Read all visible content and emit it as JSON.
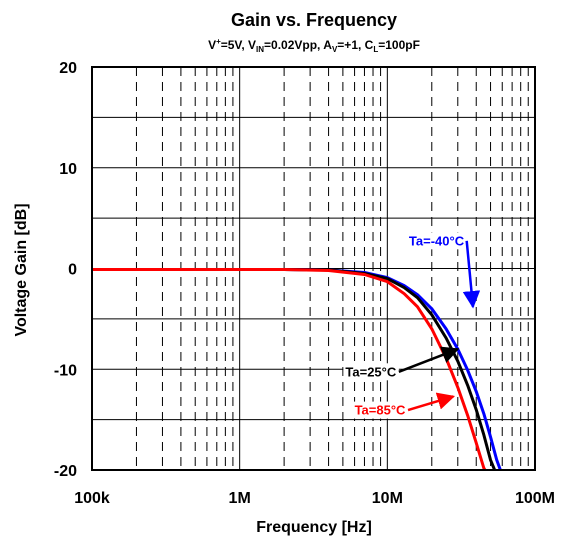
{
  "chart_data": {
    "type": "line",
    "title": "Gain vs. Frequency",
    "subtitle": {
      "v_plus": "V",
      "v_plus_sup": "+",
      "v_plus_value": "=5V, ",
      "v_in": "V",
      "v_in_sub": "IN",
      "v_in_value": "=0.02Vpp, ",
      "a_v": "A",
      "a_v_sub": "V",
      "a_v_value": "=+1, ",
      "c_l": "C",
      "c_l_sub": "L",
      "c_l_value": "=100pF"
    },
    "xlabel": "Frequency [Hz]",
    "ylabel": "Voltage Gain [dB]",
    "x_scale": "log",
    "xlim": [
      100000,
      100000000
    ],
    "ylim": [
      -20,
      20
    ],
    "x_ticks": [
      {
        "value": 100000,
        "label": "100k"
      },
      {
        "value": 1000000,
        "label": "1M"
      },
      {
        "value": 10000000,
        "label": "10M"
      },
      {
        "value": 100000000,
        "label": "100M"
      }
    ],
    "y_ticks": [
      {
        "value": 20,
        "label": "20"
      },
      {
        "value": 10,
        "label": "10"
      },
      {
        "value": 0,
        "label": "0"
      },
      {
        "value": -10,
        "label": "-10"
      },
      {
        "value": -20,
        "label": "-20"
      }
    ],
    "grid": true,
    "series": [
      {
        "name": "Ta=-40°C",
        "color": "#0000ff",
        "x": [
          100000,
          300000,
          1000000,
          2000000,
          4000000,
          7000000,
          10000000,
          13000000,
          16000000,
          20000000,
          25000000,
          30000000,
          35000000,
          40000000,
          45000000,
          50000000,
          55000000,
          60000000
        ],
        "y": [
          -0.1,
          -0.1,
          -0.1,
          -0.1,
          -0.15,
          -0.4,
          -0.9,
          -1.7,
          -2.6,
          -4.0,
          -6.0,
          -8.0,
          -10.1,
          -12.2,
          -14.4,
          -16.7,
          -19.0,
          -20.5
        ]
      },
      {
        "name": "Ta=25°C",
        "color": "#000000",
        "x": [
          100000,
          300000,
          1000000,
          2000000,
          4000000,
          7000000,
          10000000,
          13000000,
          16000000,
          20000000,
          25000000,
          30000000,
          35000000,
          40000000,
          45000000,
          50000000,
          55000000
        ],
        "y": [
          -0.1,
          -0.1,
          -0.1,
          -0.1,
          -0.15,
          -0.5,
          -1.0,
          -1.9,
          -2.9,
          -4.6,
          -6.9,
          -9.2,
          -11.6,
          -14.0,
          -16.5,
          -19.0,
          -20.5
        ]
      },
      {
        "name": "Ta=85°C",
        "color": "#ff0000",
        "x": [
          100000,
          300000,
          1000000,
          2000000,
          4000000,
          7000000,
          10000000,
          13000000,
          16000000,
          20000000,
          25000000,
          30000000,
          35000000,
          40000000,
          45000000,
          48000000
        ],
        "y": [
          -0.1,
          -0.1,
          -0.1,
          -0.1,
          -0.2,
          -0.6,
          -1.3,
          -2.5,
          -3.8,
          -6.0,
          -8.9,
          -11.8,
          -14.6,
          -17.3,
          -19.8,
          -20.5
        ]
      }
    ],
    "annotations": [
      {
        "series": 0,
        "text": "Ta=-40°C",
        "color": "#0000ff",
        "label_x": 14000000,
        "label_y": 2.3,
        "arrow_to_x": 38000000,
        "arrow_to_y": -3.8
      },
      {
        "series": 1,
        "text": "Ta=25°C",
        "color": "#000000",
        "label_x": 5200000,
        "label_y": -10.7,
        "arrow_to_x": 30000000,
        "arrow_to_y": -8.0
      },
      {
        "series": 2,
        "text": "Ta=85°C",
        "color": "#ff0000",
        "label_x": 6000000,
        "label_y": -14.5,
        "arrow_to_x": 28000000,
        "arrow_to_y": -12.7
      }
    ]
  }
}
